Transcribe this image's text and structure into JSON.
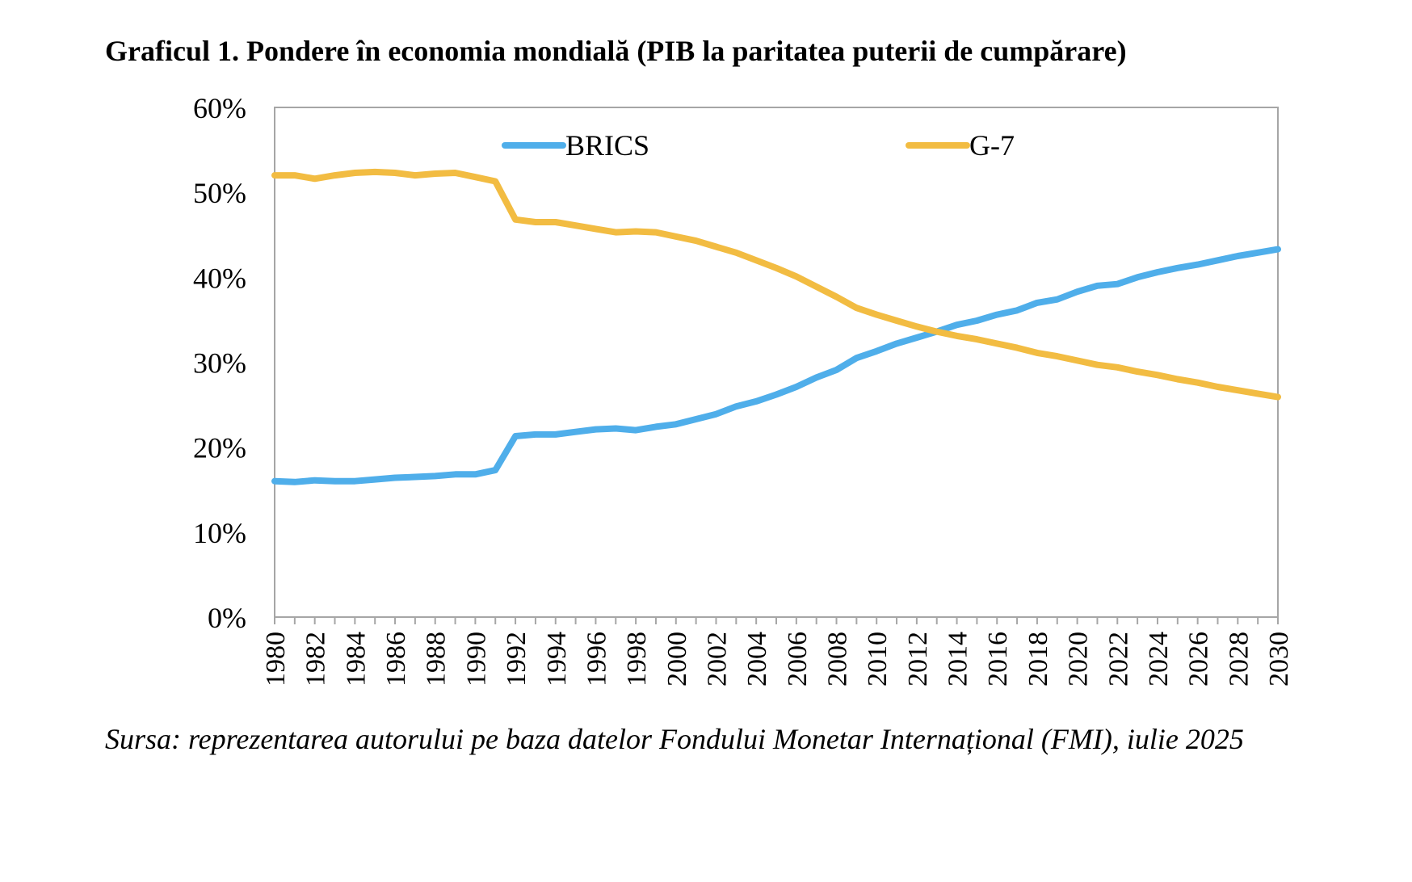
{
  "title": "Graficul 1. Pondere în economia mondială (PIB la paritatea puterii de cumpărare)",
  "source_note": "Sursa: reprezentarea autorului pe baza datelor Fondului Monetar Internațional (FMI), iulie 2025",
  "chart_data": {
    "type": "line",
    "title": "Graficul 1. Pondere în economia mondială (PIB la paritatea puterii de cumpărare)",
    "xlabel": "",
    "ylabel": "",
    "ylim": [
      0,
      60
    ],
    "y_ticks": [
      "0%",
      "10%",
      "20%",
      "30%",
      "40%",
      "50%",
      "60%"
    ],
    "x_tick_labels": [
      "1980",
      "1982",
      "1984",
      "1986",
      "1988",
      "1990",
      "1992",
      "1994",
      "1996",
      "1998",
      "2000",
      "2002",
      "2004",
      "2006",
      "2008",
      "2010",
      "2012",
      "2014",
      "2016",
      "2018",
      "2020",
      "2022",
      "2024",
      "2026",
      "2028",
      "2030"
    ],
    "grid": false,
    "legend": "top",
    "x": [
      1980,
      1981,
      1982,
      1983,
      1984,
      1985,
      1986,
      1987,
      1988,
      1989,
      1990,
      1991,
      1992,
      1993,
      1994,
      1995,
      1996,
      1997,
      1998,
      1999,
      2000,
      2001,
      2002,
      2003,
      2004,
      2005,
      2006,
      2007,
      2008,
      2009,
      2010,
      2011,
      2012,
      2013,
      2014,
      2015,
      2016,
      2017,
      2018,
      2019,
      2020,
      2021,
      2022,
      2023,
      2024,
      2025,
      2026,
      2027,
      2028,
      2029,
      2030
    ],
    "series": [
      {
        "name": "BRICS",
        "color": "#4FAEEA",
        "values": [
          16.0,
          15.9,
          16.1,
          16.0,
          16.0,
          16.2,
          16.4,
          16.5,
          16.6,
          16.8,
          16.8,
          17.3,
          21.3,
          21.5,
          21.5,
          21.8,
          22.1,
          22.2,
          22.0,
          22.4,
          22.7,
          23.3,
          23.9,
          24.8,
          25.4,
          26.2,
          27.1,
          28.2,
          29.1,
          30.5,
          31.3,
          32.2,
          32.9,
          33.6,
          34.4,
          34.9,
          35.6,
          36.1,
          37.0,
          37.4,
          38.3,
          39.0,
          39.2,
          40.0,
          40.6,
          41.1,
          41.5,
          42.0,
          42.5,
          42.9,
          43.3
        ]
      },
      {
        "name": "G-7",
        "color": "#F2BC42",
        "values": [
          52.0,
          52.0,
          51.6,
          52.0,
          52.3,
          52.4,
          52.3,
          52.0,
          52.2,
          52.3,
          51.8,
          51.3,
          46.8,
          46.5,
          46.5,
          46.1,
          45.7,
          45.3,
          45.4,
          45.3,
          44.8,
          44.3,
          43.6,
          42.9,
          42.0,
          41.1,
          40.1,
          38.9,
          37.7,
          36.4,
          35.6,
          34.9,
          34.2,
          33.6,
          33.1,
          32.7,
          32.2,
          31.7,
          31.1,
          30.7,
          30.2,
          29.7,
          29.4,
          28.9,
          28.5,
          28.0,
          27.6,
          27.1,
          26.7,
          26.3,
          25.9
        ]
      }
    ]
  }
}
